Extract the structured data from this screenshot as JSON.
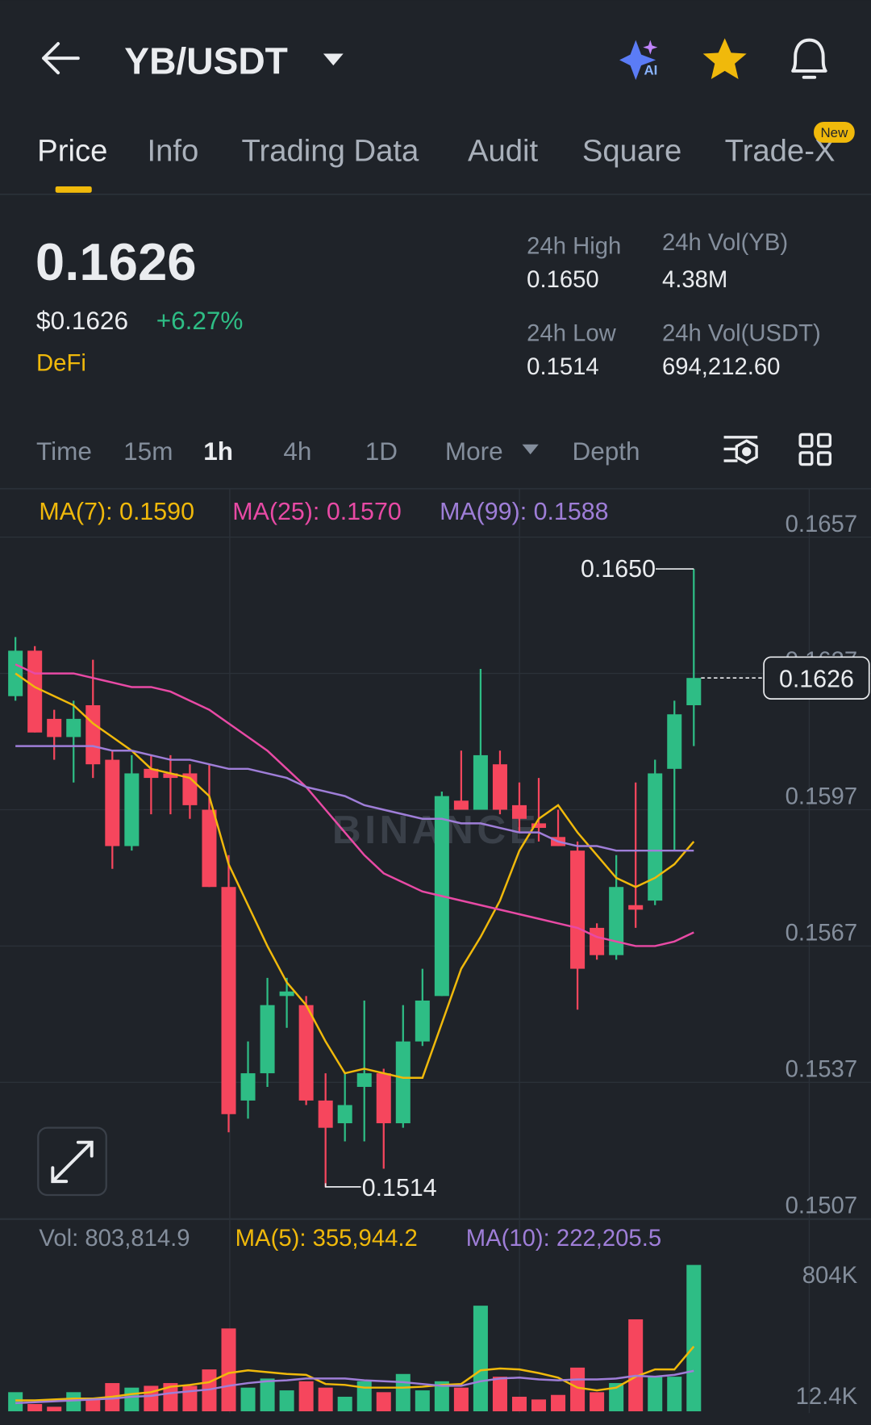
{
  "header": {
    "pair": "YB/USDT",
    "ai_badge": "AI"
  },
  "tabs": [
    "Price",
    "Info",
    "Trading Data",
    "Audit",
    "Square",
    "Trade-X"
  ],
  "tab_badge": "New",
  "ticker": {
    "last": "0.1626",
    "usd": "$0.1626",
    "change": "+6.27%",
    "tag": "DeFi"
  },
  "stats": [
    {
      "label": "24h High",
      "value": "0.1650"
    },
    {
      "label": "24h Vol(YB)",
      "value": "4.38M"
    },
    {
      "label": "24h Low",
      "value": "0.1514"
    },
    {
      "label": "24h Vol(USDT)",
      "value": "694,212.60"
    }
  ],
  "intervals": [
    "Time",
    "15m",
    "1h",
    "4h",
    "1D",
    "More",
    "Depth"
  ],
  "chart_data": [
    {
      "type": "candlestick",
      "watermark": "BINANCE",
      "up_color": "#2ebd85",
      "down_color": "#f6465d",
      "ylim": [
        0.1507,
        0.1668
      ],
      "yticks": [
        0.1657,
        0.1627,
        0.1597,
        0.1567,
        0.1537,
        0.1507
      ],
      "grid": true,
      "annotations": {
        "high": "0.1650",
        "low": "0.1514",
        "last": "0.1626"
      },
      "open": [
        0.1622,
        0.1632,
        0.1617,
        0.1613,
        0.162,
        0.1608,
        0.1589,
        0.1606,
        0.1605,
        0.1605,
        0.1597,
        0.158,
        0.1533,
        0.1539,
        0.1556,
        0.1554,
        0.1533,
        0.1528,
        0.1536,
        0.1539,
        0.1528,
        0.1546,
        0.1556,
        0.1599,
        0.1597,
        0.1607,
        0.1598,
        0.1594,
        0.1591,
        0.1588,
        0.1571,
        0.1565,
        0.1576,
        0.1577,
        0.1606,
        0.162
      ],
      "high": [
        0.1635,
        0.1633,
        0.1619,
        0.1621,
        0.163,
        0.161,
        0.1609,
        0.1609,
        0.1609,
        0.1607,
        0.1607,
        0.1587,
        0.1546,
        0.156,
        0.156,
        0.1556,
        0.1539,
        0.1539,
        0.1555,
        0.154,
        0.1554,
        0.1562,
        0.1601,
        0.161,
        0.1628,
        0.161,
        0.1603,
        0.1604,
        0.1597,
        0.159,
        0.1572,
        0.1587,
        0.1603,
        0.1608,
        0.1621,
        0.165
      ],
      "low": [
        0.1621,
        0.1614,
        0.1608,
        0.1603,
        0.1604,
        0.1584,
        0.1588,
        0.1596,
        0.1596,
        0.1595,
        0.158,
        0.1526,
        0.1529,
        0.1536,
        0.1549,
        0.1532,
        0.1514,
        0.1524,
        0.1524,
        0.1518,
        0.1527,
        0.1545,
        0.1556,
        0.1597,
        0.1597,
        0.1596,
        0.1592,
        0.159,
        0.1589,
        0.1553,
        0.1564,
        0.1564,
        0.1571,
        0.1576,
        0.1588,
        0.1611
      ],
      "close": [
        0.1632,
        0.1614,
        0.1613,
        0.1617,
        0.1607,
        0.1589,
        0.1605,
        0.1604,
        0.1604,
        0.1598,
        0.158,
        0.153,
        0.1539,
        0.1554,
        0.1557,
        0.1533,
        0.1527,
        0.1532,
        0.1539,
        0.1528,
        0.1546,
        0.1555,
        0.16,
        0.1597,
        0.1609,
        0.1597,
        0.1595,
        0.1593,
        0.1589,
        0.1562,
        0.1565,
        0.158,
        0.1575,
        0.1605,
        0.1618,
        0.1626
      ],
      "series": [
        {
          "name": "MA(7): 0.1590",
          "color": "#f0b90b",
          "values": [
            0.1627,
            0.1624,
            0.1622,
            0.162,
            0.1616,
            0.1613,
            0.161,
            0.1606,
            0.1605,
            0.1604,
            0.16,
            0.1585,
            0.1576,
            0.1567,
            0.1559,
            0.1554,
            0.1546,
            0.1539,
            0.154,
            0.1539,
            0.1538,
            0.1538,
            0.155,
            0.1562,
            0.1569,
            0.1577,
            0.1588,
            0.1595,
            0.1598,
            0.1592,
            0.1587,
            0.1582,
            0.158,
            0.1582,
            0.1585,
            0.159
          ]
        },
        {
          "name": "MA(25): 0.1570",
          "color": "#e84aa5",
          "values": [
            0.1629,
            0.1627,
            0.1627,
            0.1627,
            0.1626,
            0.1625,
            0.1624,
            0.1624,
            0.1623,
            0.1621,
            0.1619,
            0.1616,
            0.1613,
            0.161,
            0.1606,
            0.1602,
            0.1597,
            0.1592,
            0.1587,
            0.1583,
            0.1581,
            0.1579,
            0.1578,
            0.1577,
            0.1576,
            0.1575,
            0.1574,
            0.1573,
            0.1572,
            0.1571,
            0.1569,
            0.1568,
            0.1567,
            0.1567,
            0.1568,
            0.157
          ]
        },
        {
          "name": "MA(99): 0.1588",
          "color": "#9f7ed8",
          "values": [
            0.1611,
            0.1611,
            0.1611,
            0.1611,
            0.1611,
            0.161,
            0.161,
            0.1609,
            0.1608,
            0.1608,
            0.1607,
            0.1606,
            0.1606,
            0.1605,
            0.1604,
            0.1602,
            0.1601,
            0.16,
            0.1598,
            0.1597,
            0.1596,
            0.1595,
            0.1595,
            0.1594,
            0.1594,
            0.1593,
            0.1592,
            0.1592,
            0.159,
            0.1589,
            0.1589,
            0.1588,
            0.1588,
            0.1588,
            0.1588,
            0.1588
          ]
        }
      ]
    },
    {
      "type": "bar",
      "name": "Vol: 803,814.9",
      "ylim": [
        0,
        1038000
      ],
      "yticks": [
        {
          "value": 804000,
          "label": "804K"
        },
        {
          "value": 12400,
          "label": "12.4K"
        }
      ],
      "values": [
        105000,
        40000,
        25000,
        105000,
        65000,
        155000,
        130000,
        140000,
        155000,
        140000,
        230000,
        455000,
        130000,
        180000,
        115000,
        165000,
        130000,
        80000,
        165000,
        105000,
        205000,
        115000,
        165000,
        130000,
        580000,
        190000,
        80000,
        65000,
        90000,
        240000,
        105000,
        155000,
        505000,
        190000,
        190000,
        803814.9
      ],
      "series": [
        {
          "name": "MA(5): 355,944.2",
          "color": "#f0b90b",
          "values": [
            60000,
            60000,
            65000,
            70000,
            70000,
            80000,
            95000,
            105000,
            135000,
            145000,
            160000,
            210000,
            225000,
            215000,
            205000,
            200000,
            150000,
            145000,
            130000,
            130000,
            130000,
            135000,
            145000,
            150000,
            225000,
            235000,
            230000,
            210000,
            185000,
            130000,
            115000,
            130000,
            190000,
            230000,
            230000,
            355944.2
          ]
        },
        {
          "name": "MA(10): 222,205.5",
          "color": "#9f7ed8",
          "values": [
            45000,
            50000,
            55000,
            60000,
            65000,
            70000,
            80000,
            85000,
            100000,
            110000,
            120000,
            140000,
            155000,
            165000,
            170000,
            180000,
            180000,
            180000,
            170000,
            165000,
            160000,
            150000,
            140000,
            140000,
            165000,
            180000,
            185000,
            175000,
            170000,
            175000,
            175000,
            180000,
            195000,
            190000,
            200000,
            222205.5
          ]
        }
      ]
    }
  ]
}
